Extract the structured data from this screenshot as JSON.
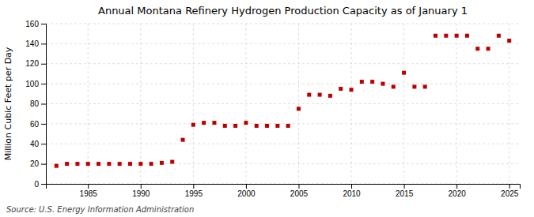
{
  "chart_data": {
    "type": "scatter",
    "title": "Annual Montana Refinery Hydrogen Production Capacity as of January 1",
    "y_label": "Million Cubic Feet per Day",
    "annotations": [
      "Source: U.S. Energy Information Administration"
    ],
    "color": "#bb0000",
    "marker": "square",
    "grid": true,
    "xlim": [
      1981,
      2026
    ],
    "ylim": [
      0,
      160
    ],
    "xticks": [
      1985,
      1990,
      1995,
      2000,
      2005,
      2010,
      2015,
      2020,
      2025
    ],
    "yticks": [
      0,
      20,
      40,
      60,
      80,
      100,
      120,
      140,
      160
    ],
    "x": [
      1982,
      1983,
      1984,
      1985,
      1986,
      1987,
      1988,
      1989,
      1990,
      1991,
      1992,
      1993,
      1994,
      1995,
      1996,
      1997,
      1998,
      1999,
      2000,
      2001,
      2002,
      2003,
      2004,
      2005,
      2006,
      2007,
      2008,
      2009,
      2010,
      2011,
      2012,
      2013,
      2014,
      2015,
      2016,
      2017,
      2018,
      2019,
      2020,
      2021,
      2022,
      2023,
      2024,
      2025
    ],
    "values": [
      18,
      20,
      20,
      20,
      20,
      20,
      20,
      20,
      20,
      20,
      21,
      22,
      44,
      59,
      61,
      61,
      58,
      58,
      61,
      58,
      58,
      58,
      58,
      75,
      89,
      89,
      88,
      95,
      94,
      102,
      102,
      100,
      97,
      111,
      97,
      97,
      148,
      148,
      148,
      148,
      135,
      135,
      148,
      143
    ]
  }
}
